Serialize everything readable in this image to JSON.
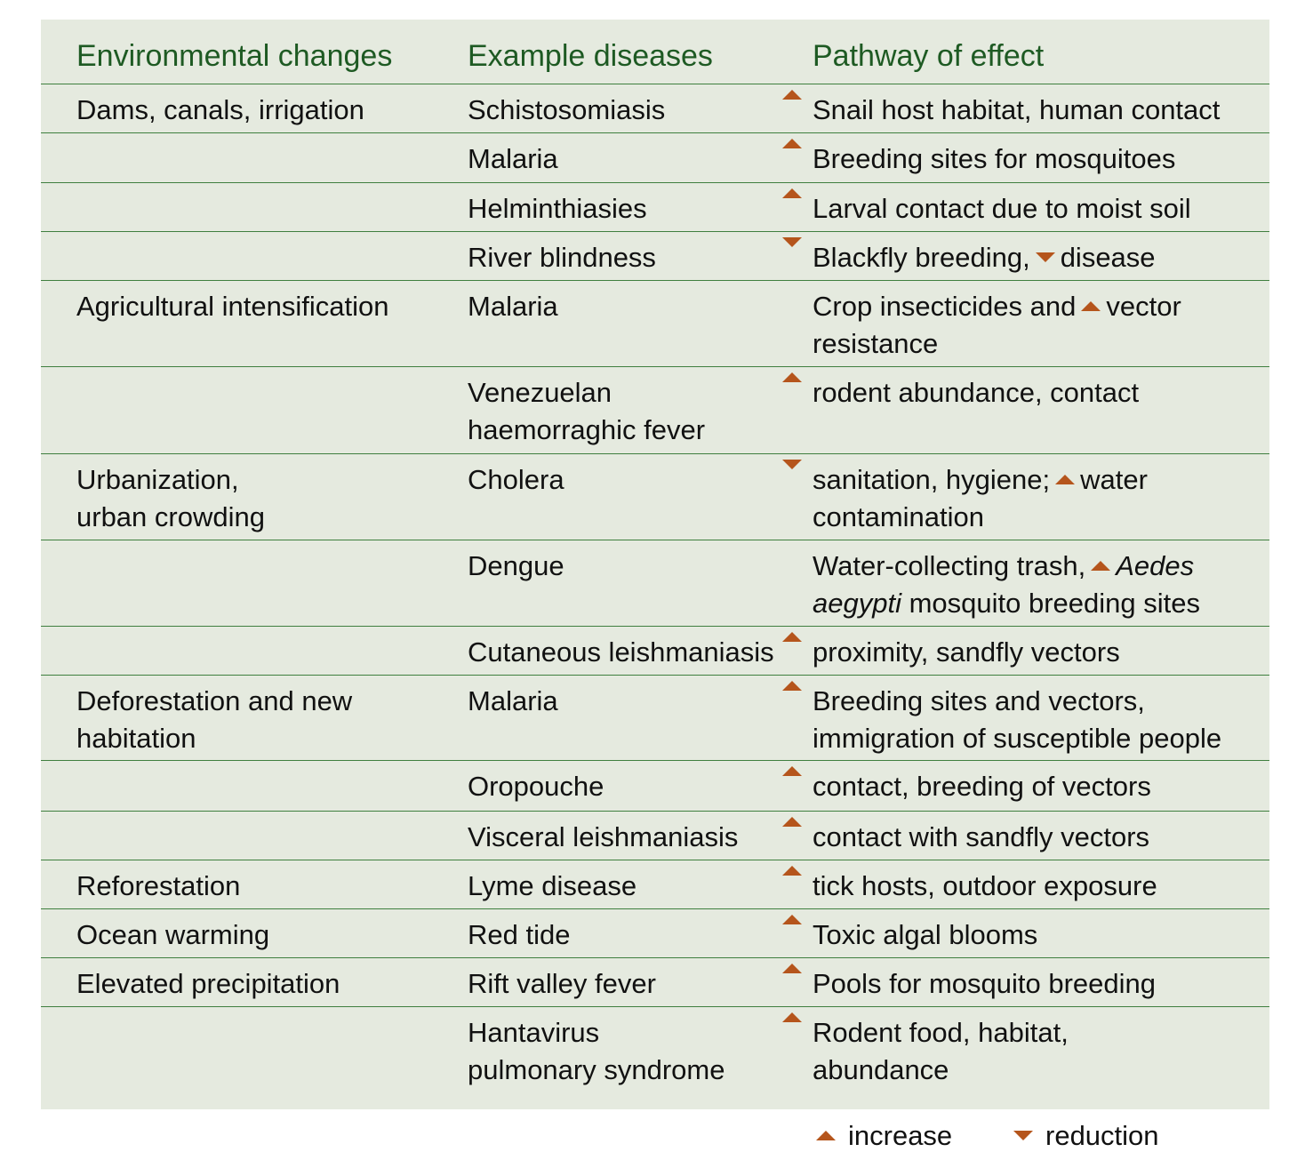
{
  "headers": {
    "environmental_changes": "Environmental changes",
    "example_diseases": "Example diseases",
    "pathway_of_effect": "Pathway of effect"
  },
  "rows": [
    {
      "change": "Dams, canals, irrigation",
      "disease": "Schistosomiasis",
      "pathway": "Snail host habitat, human contact"
    },
    {
      "change": "",
      "disease": "Malaria",
      "pathway": "Breeding sites for mosquitoes"
    },
    {
      "change": "",
      "disease": "Helminthiasies",
      "pathway": "Larval contact due to moist soil"
    },
    {
      "change": "",
      "disease": "River blindness",
      "pathway_a": "Blackfly breeding,",
      "pathway_b": "disease"
    },
    {
      "change": "Agricultural intensification",
      "disease": "Malaria",
      "pathway_a": "Crop insecticides and",
      "pathway_b": "vector",
      "pathway_c": "resistance"
    },
    {
      "change": "",
      "disease_1": "Venezuelan",
      "disease_2": "haemorraghic fever",
      "pathway": "rodent abundance, contact"
    },
    {
      "change_1": "Urbanization,",
      "change_2": "urban crowding",
      "disease": "Cholera",
      "pathway_a": "sanitation, hygiene;",
      "pathway_b": "water",
      "pathway_c": "contamination"
    },
    {
      "change": "",
      "disease": "Dengue",
      "pathway_a": "Water-collecting trash,",
      "pathway_b": "Aedes",
      "pathway_c": "aegypti",
      "pathway_d": "mosquito breeding sites"
    },
    {
      "change": "",
      "disease": "Cutaneous leishmaniasis",
      "pathway": "proximity, sandfly vectors"
    },
    {
      "change_1": "Deforestation and new",
      "change_2": "habitation",
      "disease": "Malaria",
      "pathway_1": "Breeding sites and vectors,",
      "pathway_2": "immigration of susceptible people"
    },
    {
      "change": "",
      "disease": "Oropouche",
      "pathway": "contact, breeding of vectors"
    },
    {
      "change": "",
      "disease": "Visceral leishmaniasis",
      "pathway": "contact with sandfly vectors"
    },
    {
      "change": "Reforestation",
      "disease": "Lyme disease",
      "pathway": "tick hosts, outdoor exposure"
    },
    {
      "change": "Ocean warming",
      "disease": "Red tide",
      "pathway": "Toxic algal blooms"
    },
    {
      "change": "Elevated precipitation",
      "disease": "Rift valley fever",
      "pathway": "Pools for mosquito breeding"
    },
    {
      "change": "",
      "disease_1": "Hantavirus",
      "disease_2": "pulmonary syndrome",
      "pathway_1": "Rodent food, habitat,",
      "pathway_2": "abundance"
    }
  ],
  "legend": {
    "increase": "increase",
    "reduction": "reduction"
  },
  "colors": {
    "panel_background": "#e5eadf",
    "header_text": "#1e5a23",
    "rule": "#3f7f3f",
    "arrow": "#b5551c"
  }
}
